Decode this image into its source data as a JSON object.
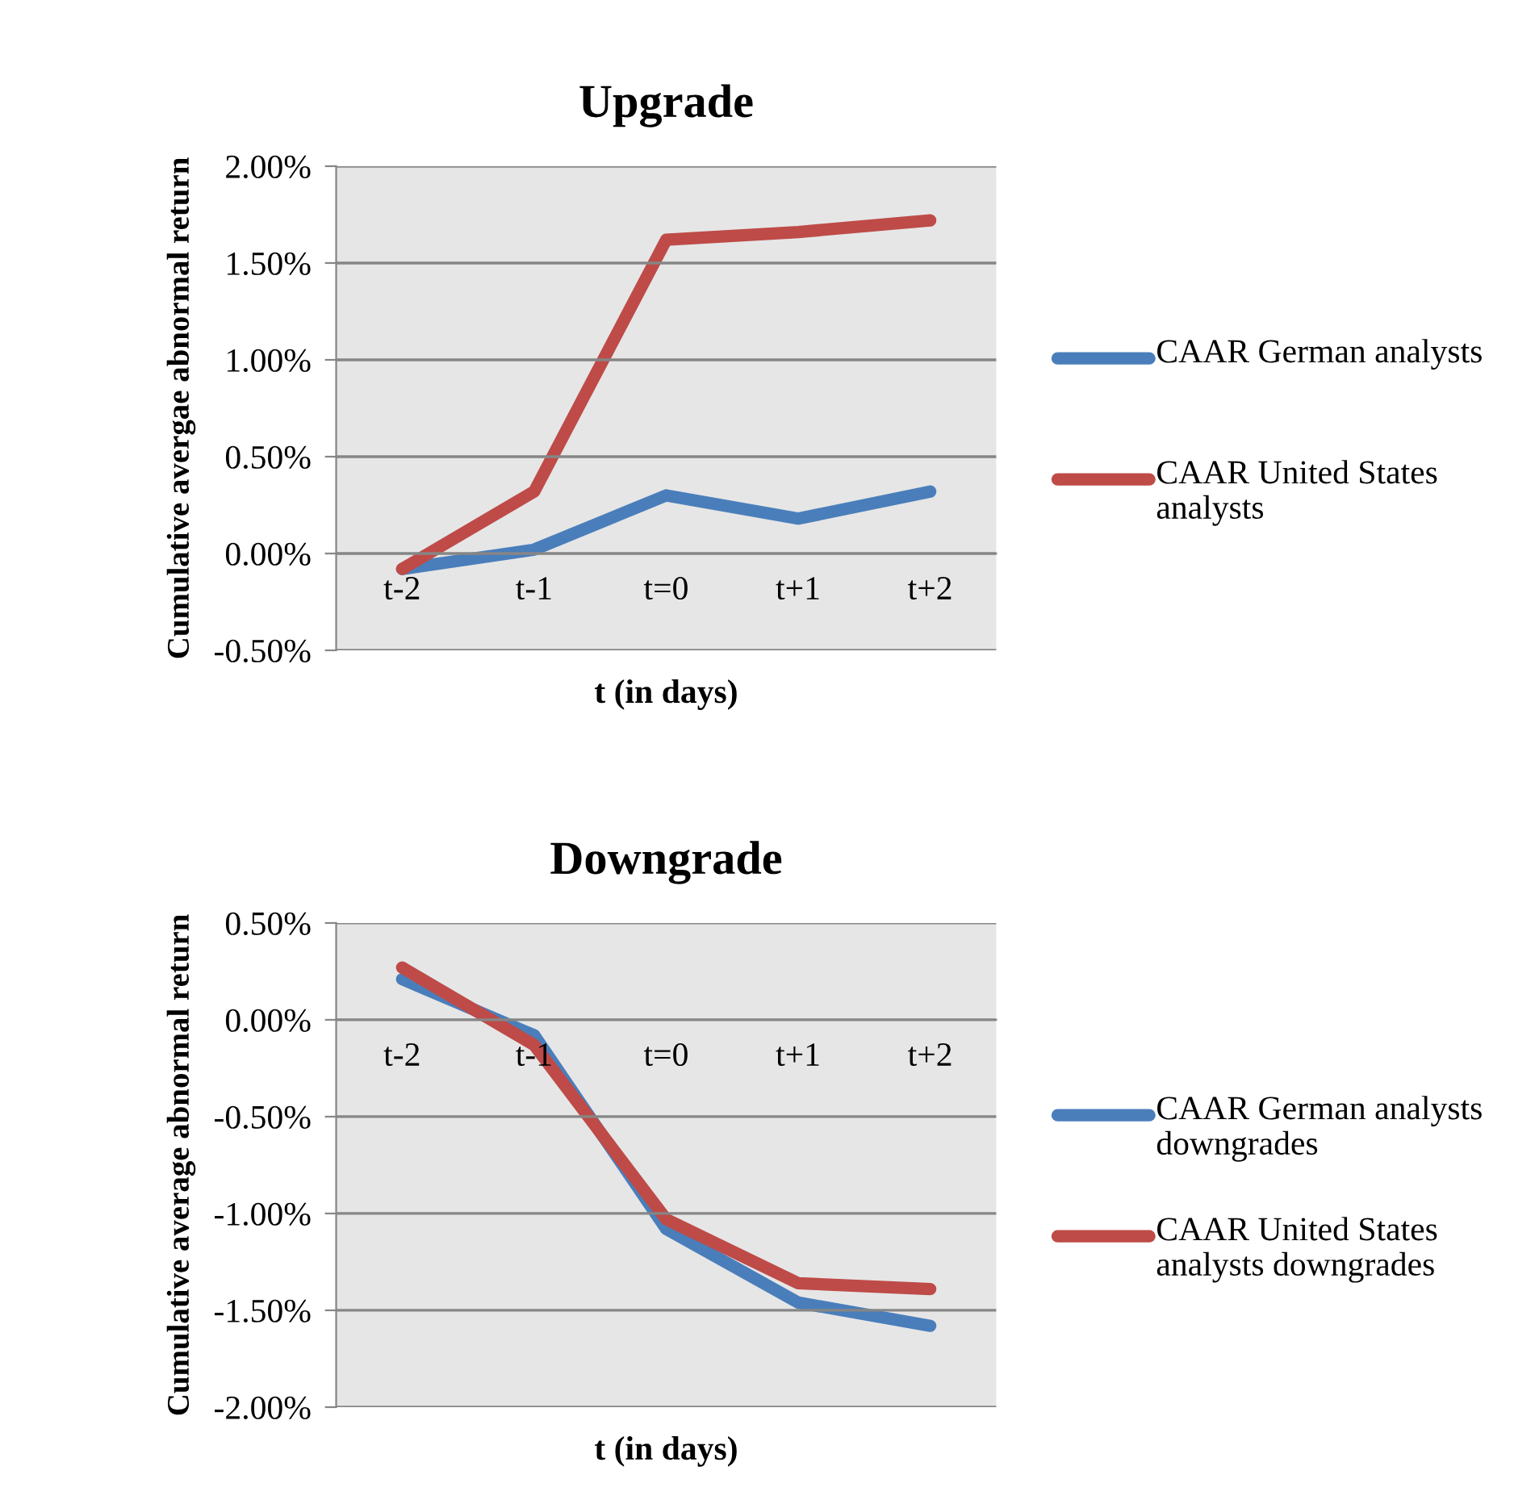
{
  "chart_data": [
    {
      "type": "line",
      "title": "Upgrade",
      "xlabel": "t (in days)",
      "ylabel": "Cumulative avergae abnormal return",
      "categories": [
        "t-2",
        "t-1",
        "t=0",
        "t+1",
        "t+2"
      ],
      "series": [
        {
          "name": "CAAR German analysts",
          "color": "#4a7ebb",
          "values": [
            -0.08,
            0.02,
            0.3,
            0.18,
            0.32
          ]
        },
        {
          "name": "CAAR United States analysts",
          "color": "#be4b48",
          "values": [
            -0.08,
            0.32,
            1.62,
            1.66,
            1.72
          ]
        }
      ],
      "ylim": [
        -0.5,
        2.0
      ],
      "yticks": [
        {
          "value": -0.5,
          "label": "-0.50%"
        },
        {
          "value": 0,
          "label": "0.00%"
        },
        {
          "value": 0.5,
          "label": "0.50%"
        },
        {
          "value": 1.0,
          "label": "1.00%"
        },
        {
          "value": 1.5,
          "label": "1.50%"
        },
        {
          "value": 2.0,
          "label": "2.00%"
        }
      ],
      "grid": "y",
      "legend": "right",
      "marker": "none",
      "line_style": "solid"
    },
    {
      "type": "line",
      "title": "Downgrade",
      "xlabel": "t (in days)",
      "ylabel": "Cumulative average abnormal return",
      "categories": [
        "t-2",
        "t-1",
        "t=0",
        "t+1",
        "t+2"
      ],
      "series": [
        {
          "name": "CAAR German analysts downgrades",
          "color": "#4a7ebb",
          "values": [
            0.21,
            -0.08,
            -1.08,
            -1.46,
            -1.58
          ]
        },
        {
          "name": "CAAR United States analysts downgrades",
          "color": "#be4b48",
          "values": [
            0.27,
            -0.13,
            -1.03,
            -1.36,
            -1.39
          ]
        }
      ],
      "ylim": [
        -2.0,
        0.5
      ],
      "yticks": [
        {
          "value": -2.0,
          "label": "-2.00%"
        },
        {
          "value": -1.5,
          "label": "-1.50%"
        },
        {
          "value": -1.0,
          "label": "-1.00%"
        },
        {
          "value": -0.5,
          "label": "-0.50%"
        },
        {
          "value": 0,
          "label": "0.00%"
        },
        {
          "value": 0.5,
          "label": "0.50%"
        }
      ],
      "grid": "y",
      "legend": "right",
      "marker": "none",
      "line_style": "solid"
    }
  ]
}
